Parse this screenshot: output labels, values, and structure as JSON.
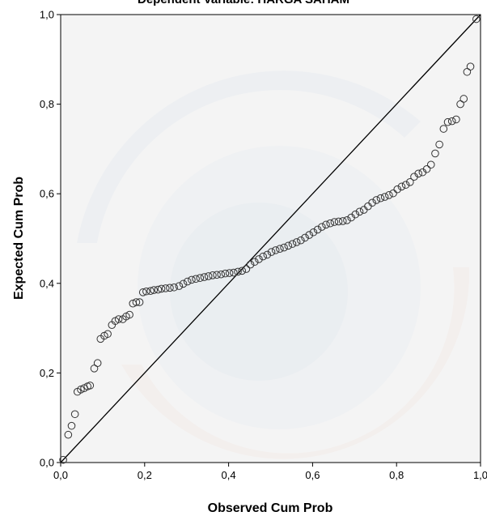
{
  "chart_data": {
    "type": "scatter",
    "title": "Dependent Variable: HARGA SAHAM",
    "xlabel": "Observed Cum Prob",
    "ylabel": "Expected Cum Prob",
    "xlim": [
      0.0,
      1.0
    ],
    "ylim": [
      0.0,
      1.0
    ],
    "x_ticks": [
      "0,0",
      "0,2",
      "0,4",
      "0,6",
      "0,8",
      "1,0"
    ],
    "y_ticks": [
      "0,0",
      "0,2",
      "0,4",
      "0,6",
      "0,8",
      "1,0"
    ],
    "reference_line": {
      "from": [
        0,
        0
      ],
      "to": [
        1,
        1
      ]
    },
    "grid": false,
    "colors": {
      "plot_background": "#f0f0f0",
      "marker_stroke": "#333333",
      "line": "#000000"
    },
    "points": [
      [
        0.006,
        0.006
      ],
      [
        0.018,
        0.062
      ],
      [
        0.026,
        0.082
      ],
      [
        0.034,
        0.108
      ],
      [
        0.04,
        0.158
      ],
      [
        0.048,
        0.163
      ],
      [
        0.056,
        0.166
      ],
      [
        0.064,
        0.17
      ],
      [
        0.07,
        0.172
      ],
      [
        0.08,
        0.21
      ],
      [
        0.088,
        0.222
      ],
      [
        0.095,
        0.276
      ],
      [
        0.104,
        0.283
      ],
      [
        0.112,
        0.287
      ],
      [
        0.122,
        0.307
      ],
      [
        0.13,
        0.316
      ],
      [
        0.138,
        0.32
      ],
      [
        0.148,
        0.32
      ],
      [
        0.156,
        0.326
      ],
      [
        0.164,
        0.33
      ],
      [
        0.172,
        0.355
      ],
      [
        0.18,
        0.358
      ],
      [
        0.188,
        0.358
      ],
      [
        0.196,
        0.38
      ],
      [
        0.204,
        0.382
      ],
      [
        0.214,
        0.383
      ],
      [
        0.222,
        0.385
      ],
      [
        0.232,
        0.386
      ],
      [
        0.24,
        0.388
      ],
      [
        0.25,
        0.389
      ],
      [
        0.26,
        0.39
      ],
      [
        0.27,
        0.391
      ],
      [
        0.282,
        0.394
      ],
      [
        0.292,
        0.399
      ],
      [
        0.302,
        0.404
      ],
      [
        0.312,
        0.408
      ],
      [
        0.322,
        0.41
      ],
      [
        0.332,
        0.412
      ],
      [
        0.342,
        0.414
      ],
      [
        0.352,
        0.416
      ],
      [
        0.362,
        0.418
      ],
      [
        0.372,
        0.419
      ],
      [
        0.382,
        0.42
      ],
      [
        0.392,
        0.422
      ],
      [
        0.402,
        0.423
      ],
      [
        0.412,
        0.424
      ],
      [
        0.422,
        0.426
      ],
      [
        0.432,
        0.428
      ],
      [
        0.442,
        0.432
      ],
      [
        0.452,
        0.442
      ],
      [
        0.462,
        0.448
      ],
      [
        0.472,
        0.454
      ],
      [
        0.482,
        0.46
      ],
      [
        0.492,
        0.464
      ],
      [
        0.502,
        0.47
      ],
      [
        0.512,
        0.474
      ],
      [
        0.522,
        0.477
      ],
      [
        0.532,
        0.48
      ],
      [
        0.542,
        0.484
      ],
      [
        0.552,
        0.488
      ],
      [
        0.562,
        0.492
      ],
      [
        0.572,
        0.496
      ],
      [
        0.582,
        0.502
      ],
      [
        0.592,
        0.508
      ],
      [
        0.602,
        0.514
      ],
      [
        0.612,
        0.52
      ],
      [
        0.622,
        0.526
      ],
      [
        0.632,
        0.531
      ],
      [
        0.642,
        0.534
      ],
      [
        0.652,
        0.537
      ],
      [
        0.662,
        0.538
      ],
      [
        0.672,
        0.539
      ],
      [
        0.682,
        0.541
      ],
      [
        0.692,
        0.547
      ],
      [
        0.702,
        0.554
      ],
      [
        0.712,
        0.56
      ],
      [
        0.722,
        0.564
      ],
      [
        0.732,
        0.572
      ],
      [
        0.742,
        0.58
      ],
      [
        0.752,
        0.586
      ],
      [
        0.762,
        0.59
      ],
      [
        0.772,
        0.593
      ],
      [
        0.782,
        0.597
      ],
      [
        0.792,
        0.601
      ],
      [
        0.802,
        0.61
      ],
      [
        0.812,
        0.616
      ],
      [
        0.822,
        0.62
      ],
      [
        0.832,
        0.626
      ],
      [
        0.842,
        0.638
      ],
      [
        0.852,
        0.645
      ],
      [
        0.862,
        0.648
      ],
      [
        0.872,
        0.655
      ],
      [
        0.882,
        0.665
      ],
      [
        0.892,
        0.69
      ],
      [
        0.902,
        0.71
      ],
      [
        0.912,
        0.745
      ],
      [
        0.922,
        0.76
      ],
      [
        0.932,
        0.762
      ],
      [
        0.942,
        0.766
      ],
      [
        0.952,
        0.8
      ],
      [
        0.96,
        0.812
      ],
      [
        0.968,
        0.872
      ],
      [
        0.976,
        0.884
      ],
      [
        0.99,
        0.99
      ]
    ]
  }
}
